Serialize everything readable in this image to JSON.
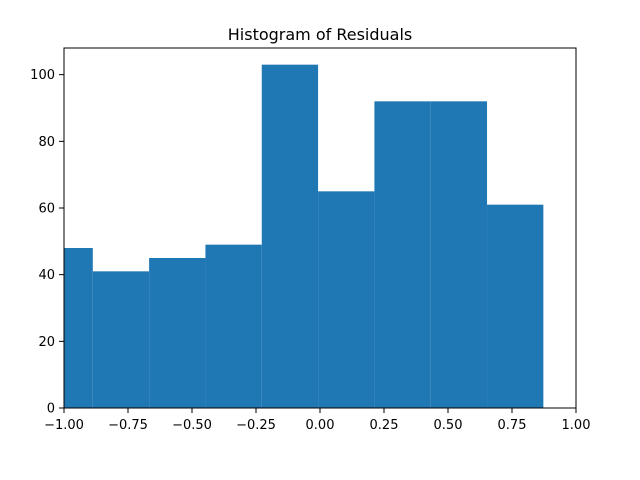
{
  "chart_data": {
    "type": "bar",
    "title": "Histogram of Residuals",
    "xlabel": "",
    "ylabel": "",
    "xlim": [
      -1.0,
      1.0
    ],
    "ylim": [
      0,
      108
    ],
    "bins": [
      {
        "start": -1.0,
        "end": -0.8875,
        "count": 48
      },
      {
        "start": -0.8875,
        "end": -0.6675,
        "count": 41
      },
      {
        "start": -0.6675,
        "end": -0.4475,
        "count": 45
      },
      {
        "start": -0.4475,
        "end": -0.2275,
        "count": 49
      },
      {
        "start": -0.2275,
        "end": -0.0075,
        "count": 103
      },
      {
        "start": -0.0075,
        "end": 0.2125,
        "count": 65
      },
      {
        "start": 0.2125,
        "end": 0.4325,
        "count": 92
      },
      {
        "start": 0.4325,
        "end": 0.6525,
        "count": 92
      },
      {
        "start": 0.6525,
        "end": 0.8725,
        "count": 61
      }
    ],
    "x_ticks": [
      "−1.00",
      "−0.75",
      "−0.50",
      "−0.25",
      "0.00",
      "0.25",
      "0.50",
      "0.75",
      "1.00"
    ],
    "x_tick_values": [
      -1.0,
      -0.75,
      -0.5,
      -0.25,
      0.0,
      0.25,
      0.5,
      0.75,
      1.0
    ],
    "y_ticks": [
      "0",
      "20",
      "40",
      "60",
      "80",
      "100"
    ],
    "y_tick_values": [
      0,
      20,
      40,
      60,
      80,
      100
    ],
    "bar_color": "#1f77b4",
    "grid": false,
    "legend": "none"
  }
}
